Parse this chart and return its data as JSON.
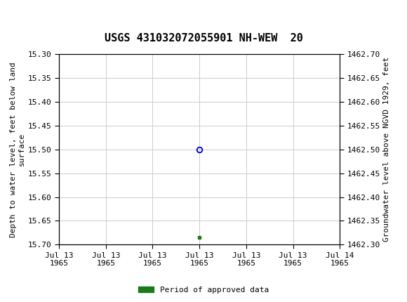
{
  "title": "USGS 431032072055901 NH-WEW  20",
  "ylabel_left": "Depth to water level, feet below land\nsurface",
  "ylabel_right": "Groundwater level above NGVD 1929, feet",
  "ylim_left": [
    15.3,
    15.7
  ],
  "ylim_right": [
    1462.3,
    1462.7
  ],
  "yticks_left": [
    15.3,
    15.35,
    15.4,
    15.45,
    15.5,
    15.55,
    15.6,
    15.65,
    15.7
  ],
  "yticks_right": [
    1462.3,
    1462.35,
    1462.4,
    1462.45,
    1462.5,
    1462.55,
    1462.6,
    1462.65,
    1462.7
  ],
  "data_point_hour": 12,
  "data_point_y": 15.5,
  "green_marker_hour": 12,
  "green_marker_y": 15.685,
  "marker_color": "#0000cc",
  "green_color": "#1a7a1a",
  "header_color": "#1a6b3c",
  "header_border_color": "#000000",
  "background_color": "#ffffff",
  "grid_color": "#cccccc",
  "legend_label": "Period of approved data",
  "font_family": "monospace",
  "title_fontsize": 11,
  "axis_label_fontsize": 8,
  "tick_fontsize": 8,
  "xtick_hours": [
    0,
    4,
    8,
    12,
    16,
    20,
    24
  ],
  "xtick_labels": [
    "Jul 13\n1965",
    "Jul 13\n1965",
    "Jul 13\n1965",
    "Jul 13\n1965",
    "Jul 13\n1965",
    "Jul 13\n1965",
    "Jul 14\n1965"
  ]
}
